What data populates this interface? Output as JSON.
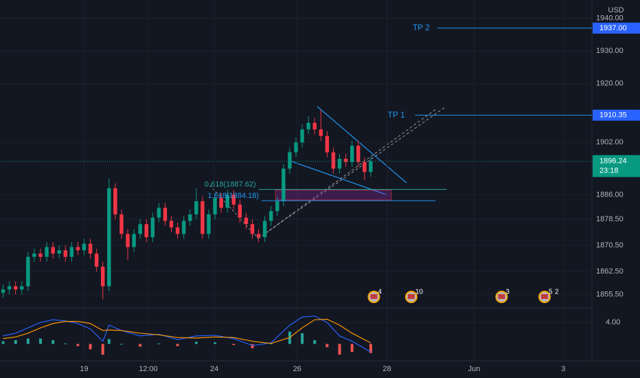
{
  "chart_data": {
    "type": "candlestick",
    "currency": "USD",
    "xlim": [
      -0.5,
      94.5
    ],
    "xticks": [
      {
        "value": 13,
        "label": "19"
      },
      {
        "value": 23.3,
        "label": "12:00"
      },
      {
        "value": 33.9,
        "label": "24"
      },
      {
        "value": 47.2,
        "label": "26"
      },
      {
        "value": 61.6,
        "label": "28"
      },
      {
        "value": 75.6,
        "label": "Jun"
      },
      {
        "value": 89.9,
        "label": "3"
      }
    ],
    "ylim": [
      1852,
      1945.6
    ],
    "yticks": [
      {
        "value": 1940,
        "label": "1940.00"
      },
      {
        "value": 1930,
        "label": "1930.00"
      },
      {
        "value": 1920,
        "label": "1920.00"
      },
      {
        "value": 1902,
        "label": "1902.00"
      },
      {
        "value": 1886,
        "label": "1886.00"
      },
      {
        "value": 1878.5,
        "label": "1878.50"
      },
      {
        "value": 1870.5,
        "label": "1870.50"
      },
      {
        "value": 1862.5,
        "label": "1862.50"
      },
      {
        "value": 1855.5,
        "label": "1855.50"
      }
    ],
    "colors": {
      "up": "#089981",
      "down": "#f23645"
    },
    "open": [
      1856,
      1857,
      1858,
      1857,
      1858,
      1867,
      1868,
      1867,
      1870,
      1868,
      1869,
      1867,
      1870,
      1869,
      1871,
      1868,
      1864,
      1858,
      1888,
      1880,
      1874,
      1870,
      1874,
      1877,
      1873,
      1879,
      1882,
      1878,
      1876,
      1874,
      1878,
      1880,
      1884,
      1874,
      1880,
      1885,
      1882,
      1886,
      1883,
      1879,
      1877,
      1874,
      1873,
      1878,
      1881,
      1884,
      1894,
      1899,
      1902,
      1906,
      1908,
      1906,
      1904,
      1899,
      1894,
      1897,
      1896,
      1901,
      1896,
      1893
    ],
    "high": [
      1858.5,
      1859.5,
      1859.5,
      1859.5,
      1868.5,
      1869.5,
      1869.5,
      1871.5,
      1871.5,
      1870.5,
      1870.5,
      1871.5,
      1871.5,
      1872.5,
      1872.5,
      1869.5,
      1865.5,
      1891,
      1889.5,
      1881.5,
      1875.5,
      1875.5,
      1878.5,
      1878.5,
      1880.5,
      1883.5,
      1883.5,
      1879.5,
      1877.5,
      1879.5,
      1881.5,
      1888,
      1885.5,
      1881.5,
      1886.5,
      1886.5,
      1887.5,
      1887.5,
      1884.5,
      1880.5,
      1878.5,
      1875.5,
      1879.5,
      1882.5,
      1885.5,
      1895.5,
      1900.5,
      1903.5,
      1907.5,
      1910,
      1909.5,
      1912,
      1905.5,
      1900.5,
      1898.5,
      1898.5,
      1902.5,
      1902.5,
      1897.5,
      1897.5
    ],
    "low": [
      1854.5,
      1855.5,
      1855.5,
      1855.5,
      1856.5,
      1865.5,
      1865.5,
      1865.5,
      1866.5,
      1866.5,
      1865.5,
      1865.5,
      1867.5,
      1867.5,
      1866.5,
      1862.5,
      1854,
      1856.5,
      1878.5,
      1872.5,
      1866,
      1868.5,
      1872.5,
      1871.5,
      1871.5,
      1877.5,
      1876.5,
      1874.5,
      1872.5,
      1872.5,
      1876.5,
      1878.5,
      1872.5,
      1872.5,
      1878.5,
      1880.5,
      1880.5,
      1881.5,
      1877.5,
      1875.5,
      1872.5,
      1871.5,
      1871.5,
      1876.5,
      1879.5,
      1882.5,
      1892.5,
      1897.5,
      1900.5,
      1904.5,
      1904.5,
      1902.5,
      1897.5,
      1892.5,
      1892.5,
      1894.5,
      1894.5,
      1894.5,
      1890.5,
      1891.5
    ],
    "close": [
      1857,
      1858,
      1857,
      1858,
      1867,
      1868,
      1867,
      1870,
      1868,
      1869,
      1867,
      1870,
      1869,
      1871,
      1868,
      1864,
      1858,
      1888,
      1880,
      1874,
      1870,
      1874,
      1877,
      1873,
      1879,
      1882,
      1878,
      1876,
      1874,
      1878,
      1880,
      1884,
      1874,
      1880,
      1885,
      1882,
      1886,
      1883,
      1879,
      1877,
      1874,
      1873,
      1878,
      1881,
      1884,
      1894,
      1899,
      1902,
      1906,
      1908,
      1906,
      1904,
      1899,
      1894,
      1897,
      1896,
      1901,
      1896,
      1893,
      1896.24
    ],
    "last": {
      "value": 1896.24,
      "label": "1896.24",
      "countdown": "23:18"
    },
    "targets": [
      {
        "name": "TP 2",
        "value": 1937,
        "label": "1937.00",
        "text_x": 67.1,
        "line_start": 69.7
      },
      {
        "name": "TP 1",
        "value": 1910.35,
        "label": "1910.35",
        "text_x": 63.1,
        "line_start": 66.1
      }
    ],
    "fib_levels": [
      {
        "label": "0.618(1887.62)",
        "value": 1887.62,
        "x": [
          41,
          71.2
        ]
      },
      {
        "label": "1.618(1884.18)",
        "value": 1884.18,
        "x": [
          41.5,
          69.4
        ]
      }
    ],
    "zone": {
      "from": 1884.4,
      "to": 1887.4,
      "x": [
        43.7,
        62.3
      ]
    },
    "events": [
      {
        "x": 59.5,
        "labels": [
          "4"
        ]
      },
      {
        "x": 65.5,
        "labels": [
          "10"
        ]
      },
      {
        "x": 80,
        "labels": [
          "3"
        ]
      },
      {
        "x": 86.9,
        "labels": [
          "5",
          "2"
        ]
      }
    ],
    "macd": {
      "ylim": [
        -2.5,
        6.2
      ],
      "yticks": [
        {
          "value": 4,
          "label": "4.00"
        }
      ],
      "x": [
        0,
        2,
        4,
        6,
        8,
        10,
        12,
        14,
        16,
        17,
        19,
        22,
        25,
        28,
        31,
        34,
        37,
        40,
        43,
        46,
        48,
        50,
        52,
        54,
        56,
        59
      ],
      "macd": {
        "color": "#2962ff",
        "values": [
          1.5,
          2.0,
          3.0,
          4.0,
          4.5,
          4.3,
          3.8,
          2.8,
          0.5,
          3.5,
          2.5,
          1.5,
          1.8,
          0.8,
          1.5,
          1.6,
          1.0,
          -0.3,
          0.2,
          3.5,
          5.0,
          5.2,
          4.0,
          1.5,
          0.5,
          -1.5
        ]
      },
      "signal": {
        "color": "#ff9800",
        "values": [
          1.0,
          1.3,
          2.0,
          3.0,
          3.8,
          4.2,
          4.2,
          3.8,
          2.5,
          2.6,
          2.5,
          2.0,
          1.7,
          1.2,
          1.1,
          1.3,
          1.2,
          0.5,
          0.1,
          1.2,
          3.0,
          4.5,
          4.6,
          3.5,
          2.0,
          0.2
        ]
      },
      "histogram": [
        0.5,
        0.7,
        1.0,
        1.0,
        0.7,
        0.1,
        -0.4,
        -1.0,
        -2.0,
        0.9,
        0,
        -0.5,
        0.1,
        -0.4,
        0.4,
        0.3,
        -0.2,
        -0.8,
        0.1,
        2.3,
        2.0,
        0.7,
        -0.6,
        -2.0,
        -1.5,
        -1.7
      ]
    }
  }
}
